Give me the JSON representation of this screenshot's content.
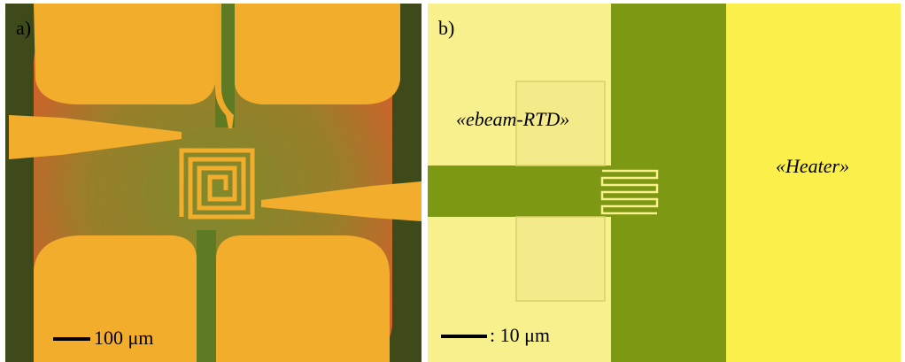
{
  "panels": [
    {
      "label": "a)",
      "scale_bar": "100 μm"
    },
    {
      "label": "b)",
      "scale_bar": ": 10 μm",
      "annotations": [
        "«ebeam-RTD»",
        "«Heater»"
      ]
    }
  ]
}
